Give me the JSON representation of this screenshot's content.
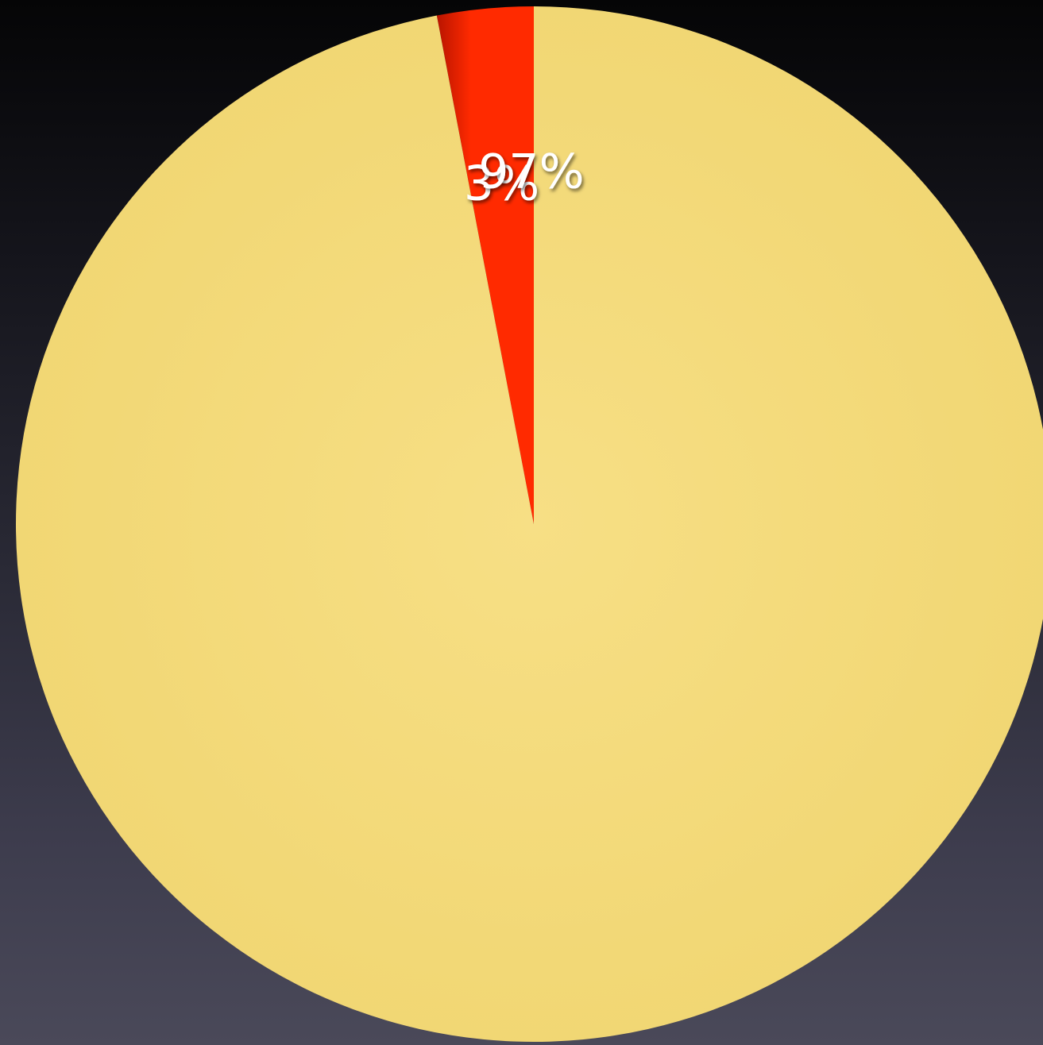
{
  "chart_data": {
    "type": "pie",
    "slices": [
      {
        "label": "3%",
        "value": 3,
        "color": "#ff2a00"
      },
      {
        "label": "97%",
        "value": 97,
        "color": "#f4d975"
      }
    ]
  }
}
